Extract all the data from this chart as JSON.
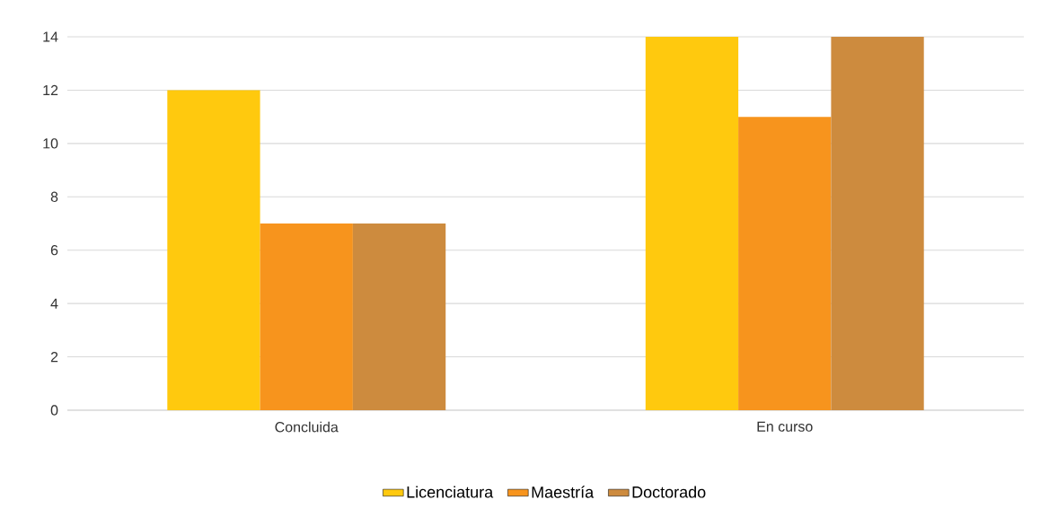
{
  "chart_data": {
    "type": "bar",
    "categories": [
      "Concluida",
      "En curso"
    ],
    "series": [
      {
        "name": "Licenciatura",
        "color": "#ffc90e",
        "values": [
          12,
          14
        ]
      },
      {
        "name": "Maestría",
        "color": "#f7941d",
        "values": [
          7,
          11
        ]
      },
      {
        "name": "Doctorado",
        "color": "#cd8b3e",
        "values": [
          7,
          14
        ]
      }
    ],
    "ylim": [
      0,
      14
    ],
    "yticks": [
      0,
      2,
      4,
      6,
      8,
      10,
      12,
      14
    ],
    "grid": "y",
    "legend": "bottom"
  }
}
